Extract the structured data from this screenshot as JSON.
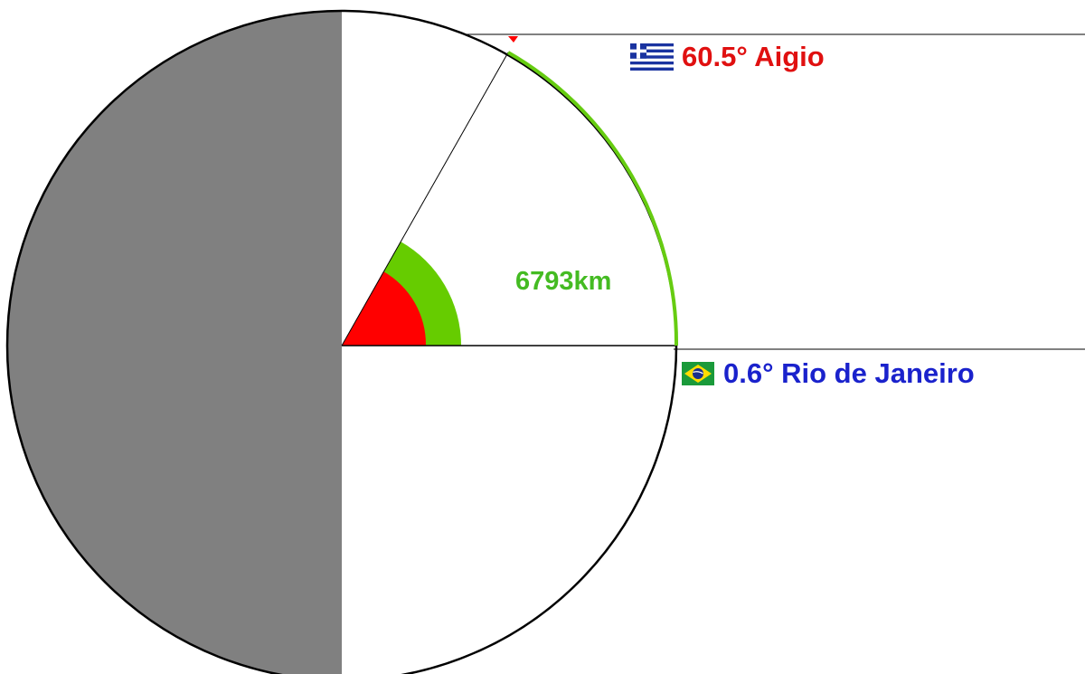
{
  "colors": {
    "shadow": "#808080",
    "outline": "#000000",
    "angle_outer": "#66cc00",
    "angle_inner": "#ff0000",
    "arc": "#66cc11",
    "aigio_text": "#e01010",
    "rio_text": "#1a22cc",
    "distance_text": "#44bb22"
  },
  "places": {
    "aigio": {
      "angle": "60.5°",
      "name": "Aigio",
      "flag_icon": "greece-flag-icon"
    },
    "rio": {
      "angle": "0.6°",
      "name": "Rio de Janeiro",
      "flag_icon": "brazil-flag-icon"
    }
  },
  "arc_distance": "6793km"
}
